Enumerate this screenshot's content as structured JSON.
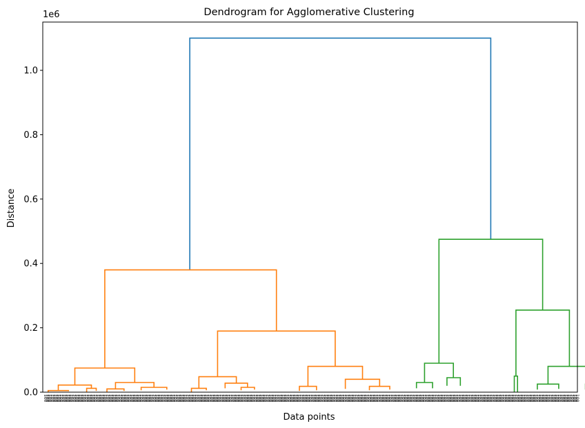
{
  "chart_data": {
    "type": "dendrogram",
    "title": "Dendrogram for Agglomerative Clustering",
    "xlabel": "Data points",
    "ylabel": "Distance",
    "y_offset_label": "1e6",
    "ylim": [
      0,
      1.15
    ],
    "y_ticks": [
      0.0,
      0.2,
      0.4,
      0.6,
      0.8,
      1.0
    ],
    "y_tick_labels": [
      "0.0",
      "0.2",
      "0.4",
      "0.6",
      "0.8",
      "1.0"
    ],
    "x_range": [
      0,
      1000
    ],
    "colors": {
      "root": "#1f77b4",
      "cluster_1": "#ff7f0e",
      "cluster_2": "#2ca02c"
    },
    "leaf_label_count": 300,
    "leaf_label_text": "100",
    "links": [
      {
        "color": "root",
        "x": [
          275,
          275,
          838,
          838
        ],
        "y": [
          0.38,
          1.1,
          1.1,
          0.475
        ]
      },
      {
        "color": "cluster_1",
        "x": [
          116,
          116,
          437,
          437
        ],
        "y": [
          0.075,
          0.38,
          0.38,
          0.19
        ]
      },
      {
        "color": "cluster_1",
        "x": [
          327,
          327,
          547,
          547
        ],
        "y": [
          0.048,
          0.19,
          0.19,
          0.08
        ]
      },
      {
        "color": "cluster_1",
        "x": [
          60,
          60,
          172,
          172
        ],
        "y": [
          0.022,
          0.075,
          0.075,
          0.03
        ]
      },
      {
        "color": "cluster_1",
        "x": [
          29,
          29,
          91,
          91
        ],
        "y": [
          0.005,
          0.022,
          0.022,
          0.012
        ]
      },
      {
        "color": "cluster_1",
        "x": [
          10,
          10,
          48,
          48
        ],
        "y": [
          0,
          0.005,
          0.005,
          0.003
        ]
      },
      {
        "color": "cluster_1",
        "x": [
          82,
          82,
          100,
          100
        ],
        "y": [
          0,
          0.012,
          0.012,
          0.004
        ]
      },
      {
        "color": "cluster_1",
        "x": [
          136,
          136,
          208,
          208
        ],
        "y": [
          0.01,
          0.03,
          0.03,
          0.015
        ]
      },
      {
        "color": "cluster_1",
        "x": [
          120,
          120,
          152,
          152
        ],
        "y": [
          0,
          0.01,
          0.01,
          0.004
        ]
      },
      {
        "color": "cluster_1",
        "x": [
          184,
          184,
          232,
          232
        ],
        "y": [
          0.006,
          0.015,
          0.015,
          0.008
        ]
      },
      {
        "color": "cluster_1",
        "x": [
          292,
          292,
          362,
          362
        ],
        "y": [
          0.012,
          0.048,
          0.048,
          0.028
        ]
      },
      {
        "color": "cluster_1",
        "x": [
          278,
          278,
          306,
          306
        ],
        "y": [
          0,
          0.012,
          0.012,
          0.006
        ]
      },
      {
        "color": "cluster_1",
        "x": [
          341,
          341,
          383,
          383
        ],
        "y": [
          0.012,
          0.028,
          0.028,
          0.015
        ]
      },
      {
        "color": "cluster_1",
        "x": [
          371,
          371,
          396,
          396
        ],
        "y": [
          0.006,
          0.015,
          0.015,
          0.008
        ]
      },
      {
        "color": "cluster_1",
        "x": [
          496,
          496,
          598,
          598
        ],
        "y": [
          0.018,
          0.08,
          0.08,
          0.04
        ]
      },
      {
        "color": "cluster_1",
        "x": [
          480,
          480,
          512,
          512
        ],
        "y": [
          0.004,
          0.018,
          0.018,
          0.006
        ]
      },
      {
        "color": "cluster_1",
        "x": [
          566,
          566,
          630,
          630
        ],
        "y": [
          0.01,
          0.04,
          0.04,
          0.018
        ]
      },
      {
        "color": "cluster_1",
        "x": [
          611,
          611,
          649,
          649
        ],
        "y": [
          0.006,
          0.018,
          0.018,
          0.008
        ]
      },
      {
        "color": "cluster_2",
        "x": [
          741,
          741,
          935,
          935
        ],
        "y": [
          0.09,
          0.475,
          0.475,
          0.255
        ]
      },
      {
        "color": "cluster_2",
        "x": [
          714,
          714,
          768,
          768
        ],
        "y": [
          0.03,
          0.09,
          0.09,
          0.045
        ]
      },
      {
        "color": "cluster_2",
        "x": [
          699,
          699,
          729,
          729
        ],
        "y": [
          0.012,
          0.03,
          0.03,
          0.012
        ]
      },
      {
        "color": "cluster_2",
        "x": [
          756,
          756,
          781,
          781
        ],
        "y": [
          0.02,
          0.045,
          0.045,
          0.02
        ]
      },
      {
        "color": "cluster_2",
        "x": [
          885,
          885,
          985,
          985
        ],
        "y": [
          0.05,
          0.255,
          0.255,
          0.08
        ]
      },
      {
        "color": "cluster_2",
        "x": [
          882,
          882,
          888,
          888
        ],
        "y": [
          0,
          0.05,
          0.05,
          0
        ]
      },
      {
        "color": "cluster_2",
        "x": [
          945,
          945,
          1025,
          1025
        ],
        "y": [
          0.025,
          0.08,
          0.08,
          0.025
        ]
      },
      {
        "color": "cluster_2",
        "x": [
          925,
          925,
          965,
          965
        ],
        "y": [
          0.008,
          0.025,
          0.025,
          0.01
        ]
      },
      {
        "color": "cluster_2",
        "x": [
          1015,
          1015,
          1035,
          1035
        ],
        "y": [
          0.008,
          0.025,
          0.025,
          0.01
        ]
      }
    ]
  }
}
